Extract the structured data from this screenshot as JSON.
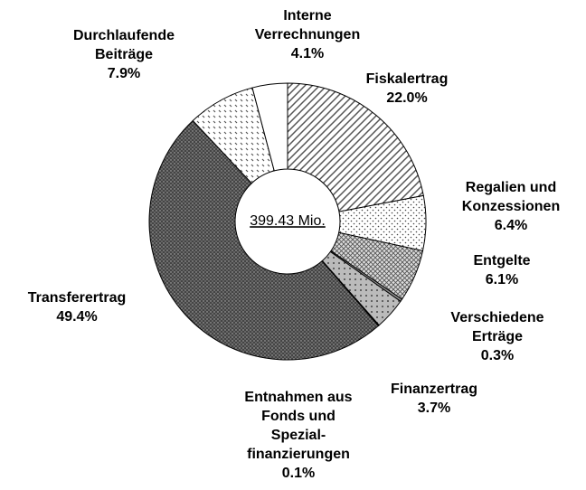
{
  "chart_data": {
    "type": "donut",
    "center_label": "399.43 Mio.",
    "categories": [
      [
        "Fiskalertrag"
      ],
      [
        "Regalien und",
        "Konzessionen"
      ],
      [
        "Entgelte"
      ],
      [
        "Verschiedene",
        "Erträge"
      ],
      [
        "Finanzertrag"
      ],
      [
        "Entnahmen aus",
        "Fonds und",
        "Spezial-",
        "finanzierungen"
      ],
      [
        "Transferertrag"
      ],
      [
        "Durchlaufende",
        "Beiträge"
      ],
      [
        "Interne",
        "Verrechnungen"
      ]
    ],
    "values": [
      22.0,
      6.4,
      6.1,
      0.3,
      3.7,
      0.1,
      49.4,
      7.9,
      4.1
    ],
    "value_labels": [
      "22.0%",
      "6.4%",
      "6.1%",
      "0.3%",
      "3.7%",
      "0.1%",
      "49.4%",
      "7.9%",
      "4.1%"
    ]
  }
}
